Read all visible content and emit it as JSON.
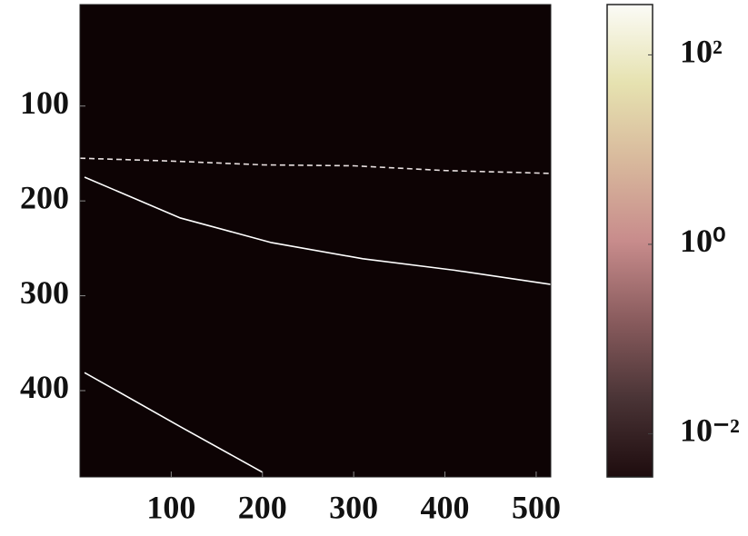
{
  "chart_data": {
    "type": "heatmap",
    "background": "#0d0304",
    "xlim": [
      0,
      516
    ],
    "ylim": [
      -7,
      491
    ],
    "y_reversed": true,
    "xticks": [
      100,
      200,
      300,
      400,
      500
    ],
    "yticks": [
      100,
      200,
      300,
      400
    ],
    "curves": [
      {
        "color": "#ffffff",
        "x": [
          5,
          110,
          210,
          310,
          410,
          516
        ],
        "y": [
          175,
          218,
          244,
          261,
          273,
          288
        ]
      },
      {
        "color": "#ffffff",
        "x": [
          5,
          110,
          200
        ],
        "y": [
          381,
          438,
          486
        ]
      },
      {
        "color": "#e8e0e0",
        "x": [
          0,
          100,
          200,
          300,
          400,
          516
        ],
        "y": [
          155,
          158,
          162,
          163,
          168,
          171
        ]
      }
    ],
    "colorbar": {
      "scale": "log",
      "clim": [
        0.0035,
        340
      ],
      "colormap": [
        "#1e0c0e",
        "#4a3436",
        "#8a5c5e",
        "#c88c8c",
        "#d8b89c",
        "#e6e2b0",
        "#fbfbf6"
      ],
      "ticks": [
        {
          "value": 0.01,
          "label": "10⁻²"
        },
        {
          "value": 1,
          "label": "10⁰"
        },
        {
          "value": 100,
          "label": "10²"
        }
      ]
    }
  }
}
